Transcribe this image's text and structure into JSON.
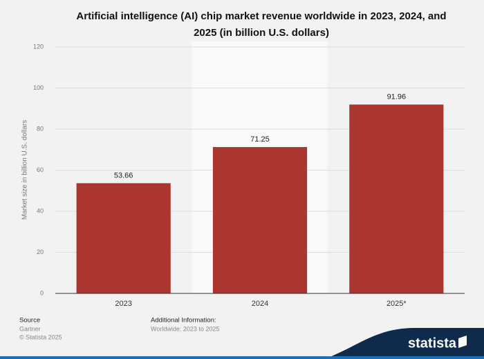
{
  "chart_data": {
    "type": "bar",
    "title": "Artificial intelligence (AI) chip market revenue worldwide in 2023, 2024, and 2025 (in billion U.S. dollars)",
    "y_label": "Market size in billion U.S. dollars",
    "categories": [
      "2023",
      "2024",
      "2025*"
    ],
    "values": [
      53.66,
      71.25,
      91.96
    ],
    "color": "#ab3630",
    "ylim": [
      0,
      120
    ],
    "yticks": [
      0,
      20,
      40,
      60,
      80,
      100,
      120
    ],
    "grid": true
  },
  "footer": {
    "source_label": "Source",
    "source": "Gartner",
    "copyright": "© Statista 2025",
    "additional_info_label": "Additional Information:",
    "additional_info": "Worldwide; 2023 to 2025",
    "logo": "statista"
  }
}
